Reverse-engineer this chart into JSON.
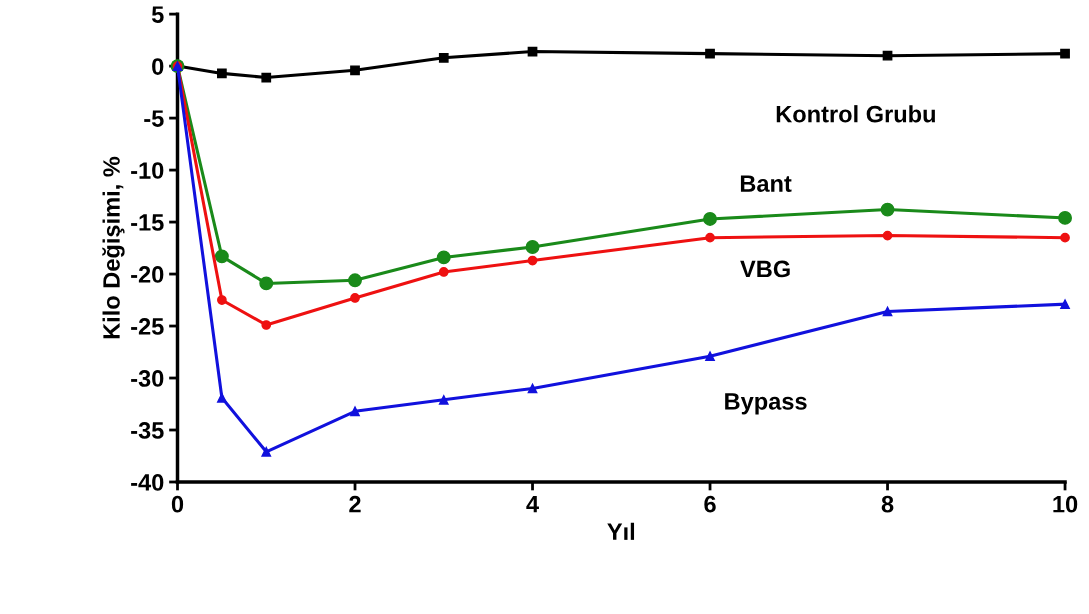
{
  "chart_data": {
    "type": "line",
    "xlabel": "Yıl",
    "ylabel": "Kilo Değişimi, %",
    "x": [
      0,
      0.5,
      1,
      2,
      3,
      4,
      6,
      8,
      10
    ],
    "series": [
      {
        "name": "Kontrol Grubu",
        "color": "#000000",
        "marker": "square",
        "values": [
          0,
          -0.7,
          -1.1,
          -0.4,
          0.8,
          1.4,
          1.2,
          1.0,
          1.2
        ]
      },
      {
        "name": "Bant",
        "color": "#1a8a1a",
        "marker": "circle",
        "values": [
          0,
          -18.3,
          -20.9,
          -20.6,
          -18.4,
          -17.4,
          -14.7,
          -13.8,
          -14.6
        ]
      },
      {
        "name": "VBG",
        "color": "#ee1111",
        "marker": "circle",
        "values": [
          0,
          -22.5,
          -24.9,
          -22.3,
          -19.8,
          -18.7,
          -16.5,
          -16.3,
          -16.5
        ]
      },
      {
        "name": "Bypass",
        "color": "#1111dd",
        "marker": "triangle",
        "values": [
          0,
          -31.9,
          -37.1,
          -33.2,
          -32.1,
          -31.0,
          -27.9,
          -23.6,
          -22.9
        ]
      }
    ],
    "xlim": [
      0,
      10
    ],
    "xticks": [
      0,
      2,
      4,
      6,
      8,
      10
    ],
    "ylim": [
      -40,
      5
    ],
    "yticks": [
      -40,
      -35,
      -30,
      -25,
      -20,
      -15,
      -10,
      -5,
      0,
      5
    ],
    "grid": false,
    "legend": false,
    "line_style": "solid"
  }
}
